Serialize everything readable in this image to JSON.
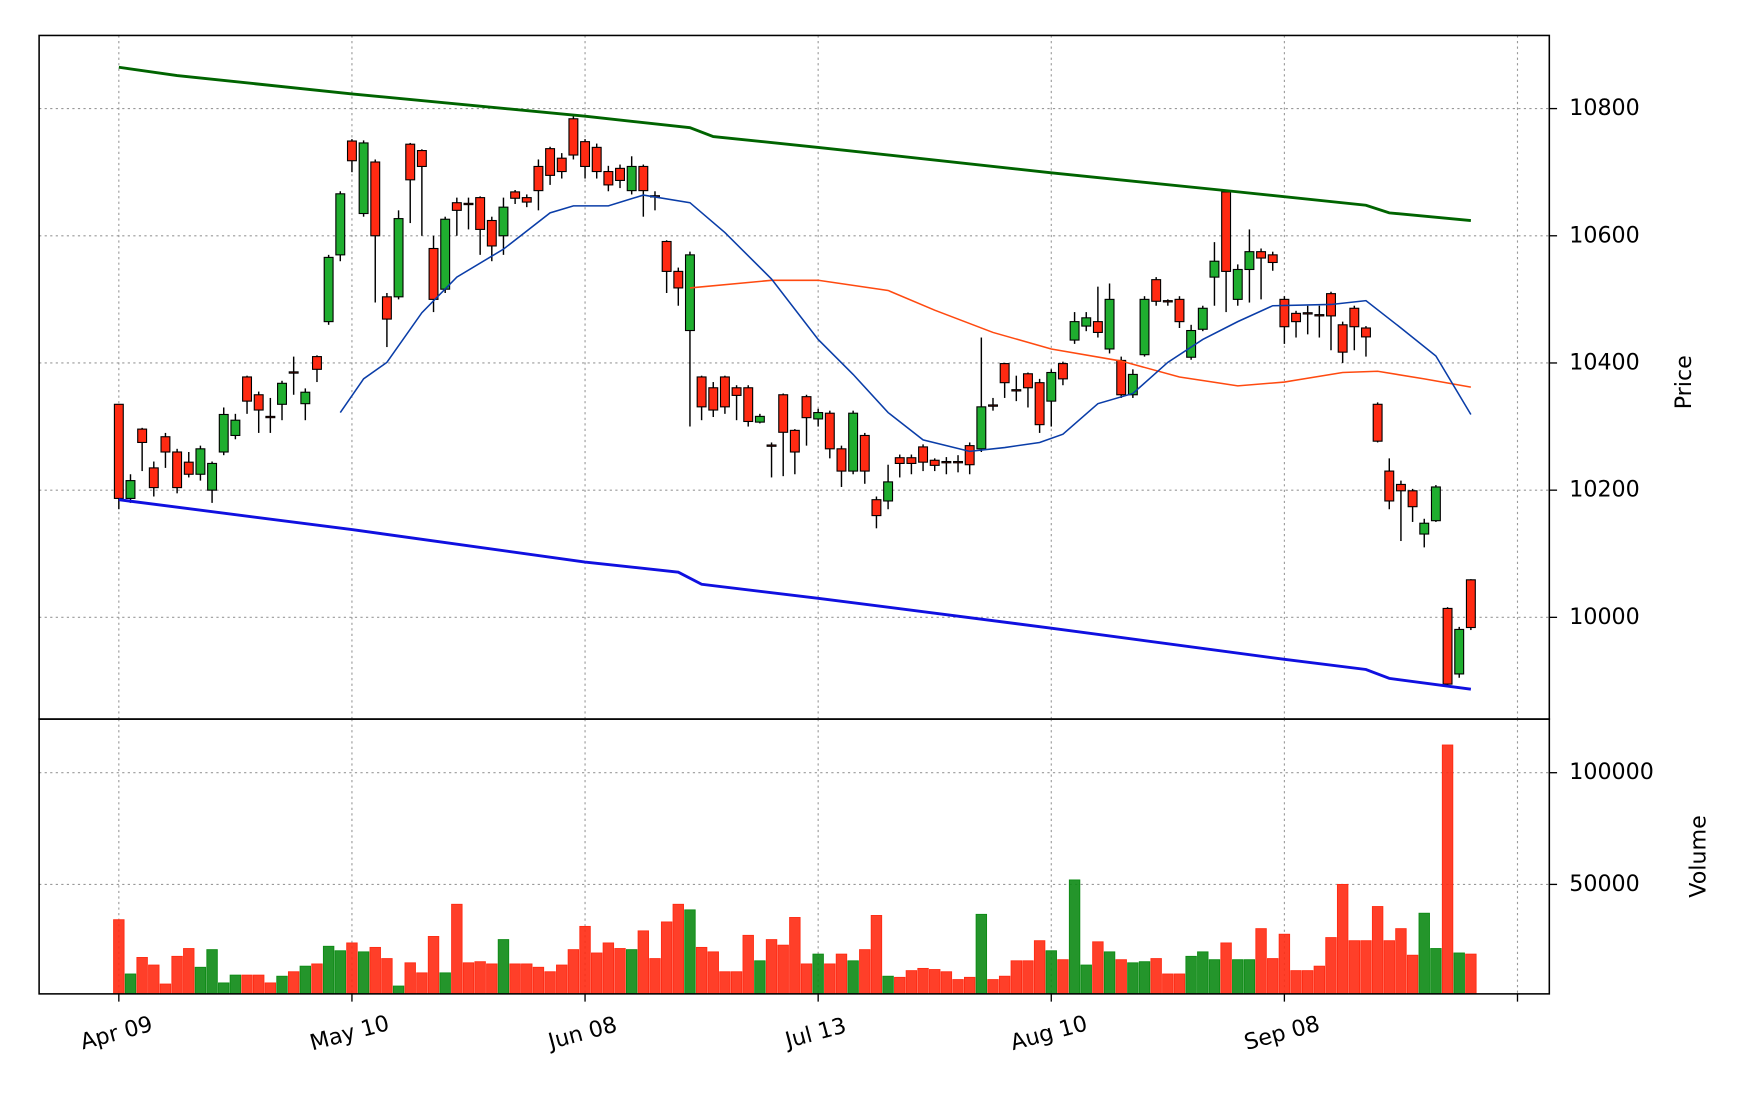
{
  "chart_data": [
    {
      "type": "candlestick",
      "ylabel": "Price",
      "categories": [
        "Apr 09",
        null,
        null,
        null,
        null,
        null,
        null,
        null,
        null,
        null,
        null,
        null,
        null,
        null,
        null,
        null,
        null,
        null,
        null,
        null,
        "May 10",
        null,
        null,
        null,
        null,
        null,
        null,
        null,
        null,
        null,
        null,
        null,
        null,
        null,
        null,
        null,
        null,
        null,
        null,
        null,
        "Jun 08",
        null,
        null,
        null,
        null,
        null,
        null,
        null,
        null,
        null,
        null,
        null,
        null,
        null,
        null,
        null,
        null,
        null,
        null,
        null,
        "Jul 13",
        null,
        null,
        null,
        null,
        null,
        null,
        null,
        null,
        null,
        null,
        null,
        null,
        null,
        null,
        null,
        null,
        null,
        null,
        null,
        "Aug 10",
        null,
        null,
        null,
        null,
        null,
        null,
        null,
        null,
        null,
        null,
        null,
        null,
        null,
        null,
        null,
        null,
        null,
        null,
        null,
        "Sep 08",
        null,
        null,
        null,
        null,
        null,
        null,
        null,
        null,
        null,
        null,
        null,
        null,
        null,
        null,
        null,
        null
      ],
      "open": [
        10335,
        10187,
        10296,
        10235,
        10284,
        10260,
        10244,
        10225,
        10200,
        10260,
        10286,
        10378,
        10350,
        10316,
        10335,
        10386,
        10336,
        10410,
        10465,
        10570,
        10749,
        10635,
        10716,
        10504,
        10504,
        10744,
        10734,
        10580,
        10516,
        10652,
        10651,
        10660,
        10624,
        10600,
        10669,
        10660,
        10709,
        10737,
        10722,
        10784,
        10748,
        10739,
        10701,
        10706,
        10671,
        10709,
        10663,
        10591,
        10544,
        10451,
        10378,
        10361,
        10378,
        10361,
        10361,
        10307,
        10271,
        10350,
        10294,
        10347,
        10312,
        10321,
        10265,
        10230,
        10286,
        10185,
        10183,
        10251,
        10251,
        10268,
        10247,
        10245,
        10245,
        10270,
        10265,
        10334,
        10399,
        10358,
        10383,
        10369,
        10340,
        10399,
        10436,
        10458,
        10465,
        10422,
        10404,
        10350,
        10413,
        10531,
        10498,
        10500,
        10409,
        10453,
        10535,
        10669,
        10500,
        10547,
        10575,
        10570,
        10500,
        10478,
        10479,
        10476,
        10509,
        10460,
        10486,
        10455,
        10335,
        10230,
        10209,
        10199,
        10131,
        10152,
        10014,
        9911,
        10059
      ],
      "high": [
        10335,
        10225,
        10298,
        10245,
        10290,
        10265,
        10260,
        10270,
        10245,
        10330,
        10320,
        10380,
        10355,
        10345,
        10372,
        10410,
        10360,
        10412,
        10570,
        10670,
        10752,
        10750,
        10720,
        10510,
        10640,
        10746,
        10736,
        10600,
        10630,
        10660,
        10660,
        10662,
        10630,
        10660,
        10672,
        10665,
        10720,
        10740,
        10730,
        10790,
        10752,
        10745,
        10710,
        10712,
        10725,
        10712,
        10670,
        10593,
        10550,
        10575,
        10380,
        10370,
        10380,
        10365,
        10365,
        10320,
        10275,
        10352,
        10296,
        10350,
        10328,
        10325,
        10270,
        10325,
        10290,
        10190,
        10240,
        10256,
        10256,
        10272,
        10250,
        10252,
        10255,
        10275,
        10440,
        10345,
        10400,
        10380,
        10385,
        10375,
        10390,
        10402,
        10480,
        10480,
        10520,
        10525,
        10410,
        10390,
        10505,
        10535,
        10500,
        10505,
        10460,
        10490,
        10590,
        10672,
        10555,
        10610,
        10580,
        10575,
        10505,
        10482,
        10490,
        10490,
        10512,
        10465,
        10490,
        10458,
        10338,
        10250,
        10215,
        10202,
        10155,
        10208,
        10016,
        9985,
        10060
      ],
      "low": [
        10170,
        10180,
        10230,
        10190,
        10235,
        10195,
        10220,
        10215,
        10180,
        10255,
        10280,
        10320,
        10290,
        10290,
        10310,
        10350,
        10310,
        10370,
        10460,
        10560,
        10700,
        10630,
        10495,
        10425,
        10500,
        10620,
        10600,
        10480,
        10510,
        10600,
        10610,
        10570,
        10560,
        10570,
        10650,
        10645,
        10640,
        10680,
        10690,
        10720,
        10690,
        10690,
        10670,
        10675,
        10665,
        10630,
        10640,
        10510,
        10490,
        10300,
        10310,
        10315,
        10320,
        10310,
        10300,
        10305,
        10220,
        10222,
        10225,
        10270,
        10300,
        10250,
        10205,
        10225,
        10210,
        10140,
        10170,
        10220,
        10225,
        10230,
        10230,
        10225,
        10228,
        10225,
        10260,
        10325,
        10345,
        10340,
        10330,
        10290,
        10300,
        10365,
        10430,
        10450,
        10440,
        10415,
        10345,
        10345,
        10410,
        10490,
        10490,
        10455,
        10405,
        10450,
        10490,
        10480,
        10490,
        10495,
        10500,
        10545,
        10430,
        10440,
        10445,
        10440,
        10420,
        10400,
        10420,
        10410,
        10275,
        10170,
        10120,
        10150,
        10110,
        10150,
        9890,
        9905,
        9980
      ],
      "close": [
        10187,
        10215,
        10275,
        10204,
        10260,
        10204,
        10225,
        10265,
        10242,
        10319,
        10310,
        10340,
        10326,
        10314,
        10368,
        10384,
        10354,
        10390,
        10566,
        10666,
        10718,
        10746,
        10600,
        10469,
        10627,
        10688,
        10709,
        10500,
        10626,
        10640,
        10649,
        10610,
        10584,
        10645,
        10659,
        10653,
        10671,
        10695,
        10701,
        10727,
        10709,
        10701,
        10680,
        10687,
        10709,
        10671,
        10661,
        10544,
        10518,
        10570,
        10331,
        10326,
        10331,
        10349,
        10308,
        10316,
        10269,
        10291,
        10260,
        10314,
        10322,
        10265,
        10230,
        10321,
        10230,
        10160,
        10213,
        10242,
        10242,
        10244,
        10239,
        10243,
        10243,
        10240,
        10331,
        10332,
        10369,
        10356,
        10361,
        10303,
        10385,
        10375,
        10465,
        10471,
        10448,
        10500,
        10350,
        10382,
        10500,
        10497,
        10496,
        10465,
        10451,
        10486,
        10560,
        10544,
        10547,
        10575,
        10565,
        10558,
        10457,
        10465,
        10477,
        10474,
        10474,
        10417,
        10457,
        10441,
        10277,
        10183,
        10199,
        10174,
        10148,
        10205,
        9895,
        9981,
        9984
      ],
      "up_color": "#1fae2f",
      "down_color": "#ff2a12",
      "lines": [
        {
          "color": "#006400",
          "x": [
            0,
            5,
            20,
            40,
            49,
            51,
            60,
            80,
            95,
            107,
            109,
            116
          ],
          "values": [
            10865,
            10852,
            10823,
            10788,
            10770,
            10756,
            10739,
            10699,
            10671,
            10648,
            10636,
            10624
          ]
        },
        {
          "color": "#1010e0",
          "x": [
            0,
            20,
            40,
            48,
            50,
            60,
            80,
            100,
            107,
            109,
            116
          ],
          "values": [
            10185,
            10138,
            10087,
            10071,
            10052,
            10030,
            9983,
            9934,
            9918,
            9904,
            9887
          ]
        },
        {
          "color": "#ff4a10",
          "x": [
            49,
            56,
            60,
            66,
            70,
            75,
            80,
            86,
            91,
            96,
            100,
            105,
            108,
            112,
            116
          ],
          "values": [
            10518,
            10530,
            10530,
            10514,
            10483,
            10448,
            10422,
            10403,
            10378,
            10364,
            10370,
            10385,
            10387,
            10375,
            10362
          ]
        },
        {
          "color": "#0a3da8",
          "x": [
            19,
            21,
            23,
            26,
            29,
            33,
            37,
            39,
            42,
            45,
            49,
            52,
            56,
            60,
            63,
            66,
            69,
            73,
            76,
            79,
            81,
            84,
            87,
            90,
            93,
            96,
            99,
            104,
            107,
            110,
            113,
            116
          ],
          "values": [
            10322,
            10375,
            10401,
            10479,
            10535,
            10579,
            10636,
            10647,
            10647,
            10664,
            10652,
            10605,
            10532,
            10437,
            10382,
            10322,
            10279,
            10261,
            10267,
            10275,
            10288,
            10336,
            10352,
            10401,
            10437,
            10465,
            10490,
            10492,
            10498,
            10455,
            10411,
            10319
          ]
        }
      ],
      "xlim": [
        -6.84,
        122.73
      ],
      "xticks": [
        0,
        20,
        40,
        60,
        80,
        100,
        120
      ],
      "ylim": [
        9840,
        10915
      ],
      "yticks": [
        10000,
        10200,
        10400,
        10600,
        10800
      ],
      "grid": true
    },
    {
      "type": "bar",
      "ylabel": "Volume",
      "values": [
        34200,
        9900,
        17300,
        13900,
        5400,
        17800,
        21300,
        12900,
        20800,
        5900,
        9400,
        9400,
        9400,
        5900,
        8900,
        10900,
        13400,
        14400,
        22300,
        20300,
        23800,
        19800,
        21800,
        16800,
        4500,
        14900,
        10400,
        26700,
        10400,
        41100,
        14900,
        15400,
        14400,
        25300,
        14400,
        14400,
        12900,
        10900,
        13900,
        20800,
        31200,
        19300,
        23800,
        21300,
        20800,
        29200,
        16800,
        33200,
        41100,
        38600,
        21800,
        19800,
        10900,
        10900,
        27200,
        15800,
        25300,
        22800,
        35200,
        14400,
        18800,
        14400,
        18800,
        15800,
        20800,
        36100,
        8900,
        8400,
        11400,
        12400,
        11900,
        10900,
        7400,
        8400,
        36600,
        7400,
        8900,
        15800,
        15800,
        24800,
        20300,
        16300,
        52000,
        13900,
        24300,
        19800,
        16300,
        14900,
        15400,
        16800,
        9900,
        9900,
        17800,
        19800,
        16300,
        23800,
        16300,
        16300,
        30200,
        16800,
        27700,
        11400,
        11400,
        13400,
        26200,
        50000,
        24800,
        24800,
        40100,
        24800,
        30200,
        18300,
        37100,
        21300,
        112400,
        19300,
        18800
      ],
      "up_color": "#0c8a14",
      "down_color": "#ff2a12",
      "ylim": [
        1000,
        124000
      ],
      "yticks": [
        50000,
        100000
      ],
      "grid": true
    }
  ]
}
